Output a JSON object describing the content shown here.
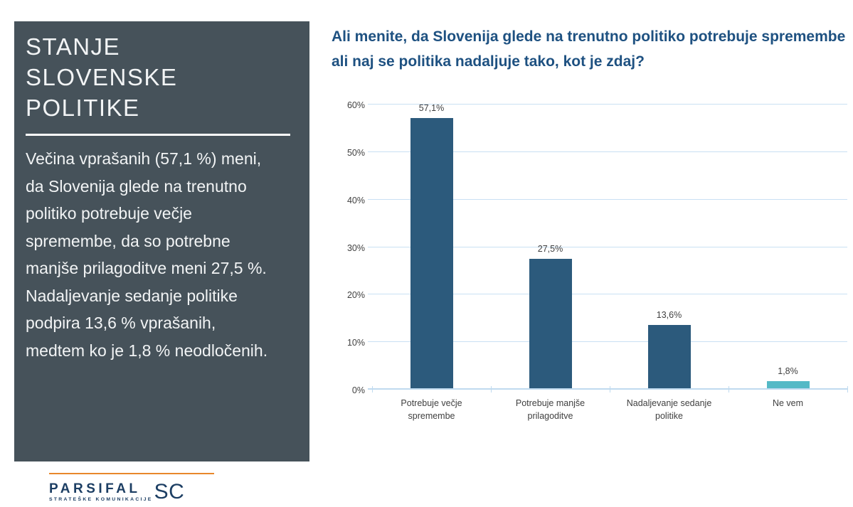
{
  "colors": {
    "panel_bg": "#46525A",
    "question_text": "#1E5181",
    "bar_primary": "#2C5A7C",
    "bar_accent": "#54B9C6",
    "gridline": "#C9E0F3",
    "axis_line": "#BFDAEF",
    "tick_label": "#404040",
    "accent_line": "#E8872B",
    "logo_navy": "#1C3E63"
  },
  "panel": {
    "title": "STANJE SLOVENSKE POLITIKE",
    "title_lines": [
      "STANJE",
      "SLOVENSKE",
      "POLITIKE"
    ],
    "body": "Večina vprašanih (57,1 %) meni, da Slovenija glede na trenutno politiko potrebuje večje spremembe, da so potrebne manjše prilagoditve meni 27,5 %. Nadaljevanje sedanje politike podpira 13,6 % vprašanih, medtem ko je 1,8 % neodločenih.",
    "body_lines": [
      "Večina vprašanih (57,1 %) meni,",
      "da Slovenija glede na trenutno",
      "politiko potrebuje večje",
      "spremembe, da so potrebne",
      "manjše prilagoditve meni 27,5 %.",
      "Nadaljevanje sedanje politike",
      "podpira 13,6 % vprašanih,",
      "medtem ko je 1,8 % neodločenih."
    ]
  },
  "chart_data": {
    "type": "bar",
    "title": "Ali menite, da Slovenija glede na trenutno politiko potrebuje spremembe ali naj se politika nadaljuje tako, kot je zdaj?",
    "xlabel": "",
    "ylabel": "",
    "categories": [
      "Potrebuje večje spremembe",
      "Potrebuje manjše prilagoditve",
      "Nadaljevanje sedanje politike",
      "Ne vem"
    ],
    "values": [
      57.1,
      27.5,
      13.6,
      1.8
    ],
    "value_labels": [
      "57,1%",
      "27,5%",
      "13,6%",
      "1,8%"
    ],
    "bar_colors": [
      "#2C5A7C",
      "#2C5A7C",
      "#2C5A7C",
      "#54B9C6"
    ],
    "ylim": [
      0,
      60
    ],
    "yticks": [
      0,
      10,
      20,
      30,
      40,
      50,
      60
    ],
    "ytick_labels": [
      "0%",
      "10%",
      "20%",
      "30%",
      "40%",
      "50%",
      "60%"
    ],
    "grid": true,
    "legend_position": "none"
  },
  "footer": {
    "logo_primary": "PARSIFAL",
    "logo_secondary": "SC",
    "logo_tagline": "STRATEŠKE KOMUNIKACIJE"
  }
}
